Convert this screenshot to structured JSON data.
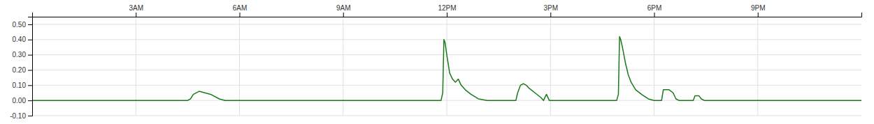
{
  "chart_data": {
    "type": "line",
    "x": [
      0,
      270,
      275,
      280,
      290,
      300,
      310,
      325,
      335,
      710,
      713,
      715,
      717,
      720,
      725,
      730,
      735,
      740,
      745,
      752,
      762,
      775,
      790,
      840,
      843,
      848,
      853,
      858,
      863,
      873,
      883,
      888,
      893,
      898,
      1015,
      1018,
      1020,
      1022,
      1025,
      1030,
      1035,
      1040,
      1048,
      1058,
      1070,
      1080,
      1093,
      1096,
      1106,
      1113,
      1118,
      1123,
      1148,
      1151,
      1158,
      1162,
      1167,
      1440
    ],
    "values": [
      0.0,
      0.0,
      0.01,
      0.04,
      0.06,
      0.05,
      0.04,
      0.01,
      0.0,
      0.0,
      0.05,
      0.4,
      0.38,
      0.3,
      0.18,
      0.14,
      0.12,
      0.14,
      0.1,
      0.07,
      0.04,
      0.01,
      0.0,
      0.0,
      0.05,
      0.1,
      0.11,
      0.1,
      0.08,
      0.05,
      0.02,
      0.0,
      0.04,
      0.0,
      0.0,
      0.04,
      0.42,
      0.4,
      0.35,
      0.25,
      0.17,
      0.12,
      0.07,
      0.04,
      0.01,
      0.0,
      0.0,
      0.07,
      0.07,
      0.05,
      0.01,
      0.0,
      0.0,
      0.03,
      0.03,
      0.01,
      0.0,
      0.0
    ],
    "color": "#1a7a1a",
    "xlim": [
      0,
      1440
    ],
    "xticks": [
      {
        "value": 180,
        "label": "3AM"
      },
      {
        "value": 360,
        "label": "6AM"
      },
      {
        "value": 540,
        "label": "9AM"
      },
      {
        "value": 720,
        "label": "12PM"
      },
      {
        "value": 900,
        "label": "3PM"
      },
      {
        "value": 1080,
        "label": "6PM"
      },
      {
        "value": 1260,
        "label": "9PM"
      }
    ],
    "ylim": [
      -0.1,
      0.55
    ],
    "yticks": [
      {
        "value": -0.1,
        "label": "-0.10"
      },
      {
        "value": 0.0,
        "label": "0.00"
      },
      {
        "value": 0.1,
        "label": "0.10"
      },
      {
        "value": 0.2,
        "label": "0.20"
      },
      {
        "value": 0.3,
        "label": "0.30"
      },
      {
        "value": 0.4,
        "label": "0.40"
      },
      {
        "value": 0.5,
        "label": "0.50"
      }
    ],
    "grid": true
  }
}
